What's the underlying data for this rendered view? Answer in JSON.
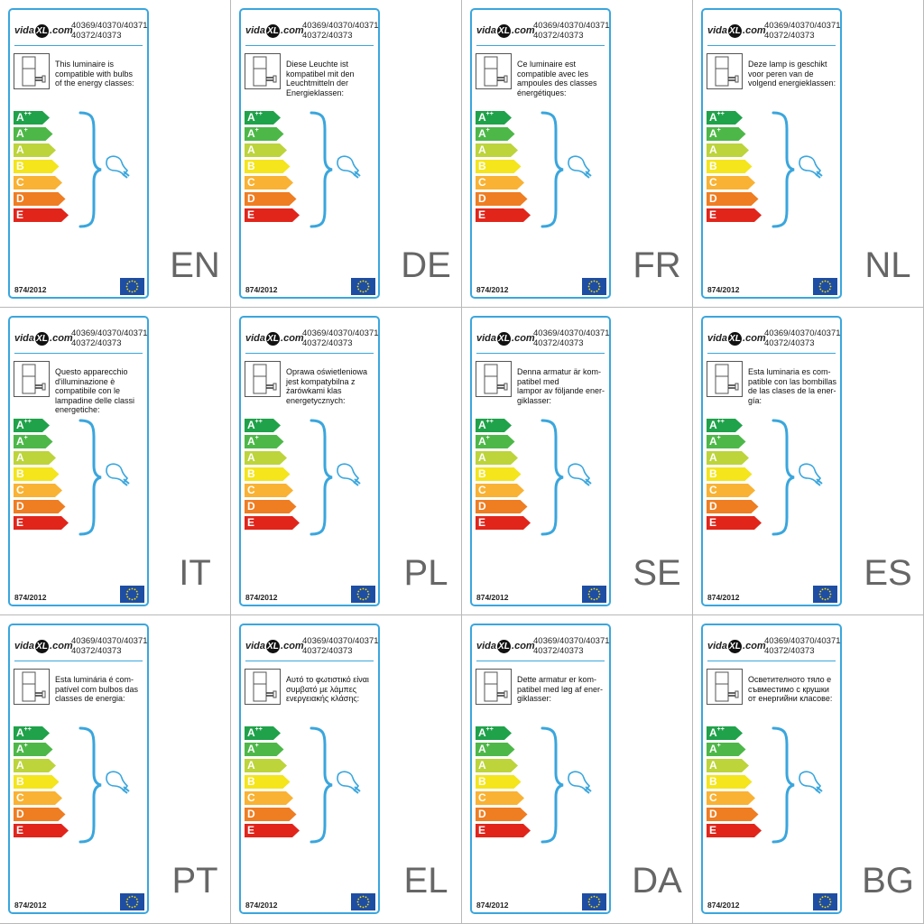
{
  "logo": {
    "pre": "vida",
    "badge": "XL",
    "post": ".com"
  },
  "product_codes": [
    "40369/40370/40371",
    "40372/40373"
  ],
  "energy_classes": [
    {
      "letter": "A",
      "sup": "++",
      "color": "#1fa24a"
    },
    {
      "letter": "A",
      "sup": "+",
      "color": "#4db848"
    },
    {
      "letter": "A",
      "sup": "",
      "color": "#bdd43a"
    },
    {
      "letter": "B",
      "sup": "",
      "color": "#f4e51c"
    },
    {
      "letter": "C",
      "sup": "",
      "color": "#f9b233"
    },
    {
      "letter": "D",
      "sup": "",
      "color": "#ef7d22"
    },
    {
      "letter": "E",
      "sup": "",
      "color": "#e1251b"
    }
  ],
  "regulation": "874/2012",
  "accent_color": "#3aa6dd",
  "icons": [
    "luminaire-icon",
    "brace-icon",
    "bulb-icon",
    "eu-flag-icon"
  ],
  "labels": [
    {
      "lang": "EN",
      "lines": [
        "This luminaire is",
        "compatible with bulbs",
        "of the energy classes:"
      ]
    },
    {
      "lang": "DE",
      "lines": [
        "Diese Leuchte ist",
        "kompatibel mit den",
        "Leuchtmitteln der",
        "Energieklassen:"
      ]
    },
    {
      "lang": "FR",
      "lines": [
        "Ce luminaire est",
        "compatible avec les",
        "ampoules des classes",
        "énergétiques:"
      ]
    },
    {
      "lang": "NL",
      "lines": [
        "Deze lamp is geschikt",
        "voor peren van de",
        "volgend energieklassen:"
      ]
    },
    {
      "lang": "IT",
      "lines": [
        "Questo apparecchio",
        "d'illuminazione è",
        "compatibile con le",
        "lampadine delle classi",
        "energetiche:"
      ]
    },
    {
      "lang": "PL",
      "lines": [
        "Oprawa oświetleniowa",
        "jest kompatybilna z",
        "żarówkami klas",
        "energetycznych:"
      ]
    },
    {
      "lang": "SE",
      "lines": [
        "Denna armatur är kom-",
        "patibel med",
        "lampor av följande ener-",
        "giklasser:"
      ]
    },
    {
      "lang": "ES",
      "lines": [
        "Esta luminaria es com-",
        "patible con las bombillas",
        "de las clases de la ener-",
        "gía:"
      ]
    },
    {
      "lang": "PT",
      "lines": [
        "Esta luminária é com-",
        "patível com bulbos das",
        "classes de energia:"
      ]
    },
    {
      "lang": "EL",
      "lines": [
        "Αυτό το φωτιστικό είναι",
        "συμβατό με λάμπες",
        "ενεργειακής κλάσης:"
      ]
    },
    {
      "lang": "DA",
      "lines": [
        "Dette armatur er kom-",
        "patibel med løg af ener-",
        "giklasser:"
      ]
    },
    {
      "lang": "BG",
      "lines": [
        "Осветителното тяло е",
        "съвместимо с крушки",
        "от енергийни класове:"
      ]
    }
  ]
}
